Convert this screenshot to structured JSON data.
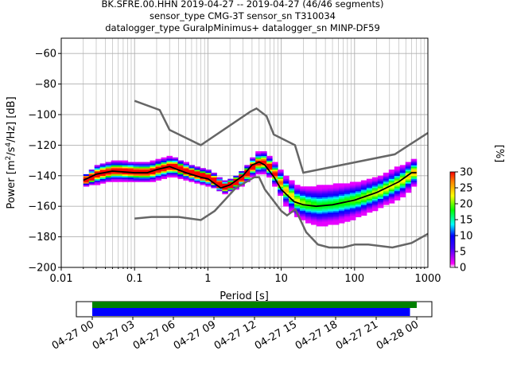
{
  "title_lines": [
    "BK.SFRE.00.HHN   2019-04-27 -- 2019-04-27  (46/46 segments)",
    "sensor_type CMG-3T sensor_sn T310034",
    "datalogger_type GuralpMinimus+ datalogger_sn MINP-DF59"
  ],
  "chart_data": {
    "type": "heatmap",
    "subtype": "ppsd",
    "xlabel": "Period [s]",
    "ylabel": "Power [m²/s⁴/Hz] [dB]",
    "xscale": "log",
    "xlim": [
      0.01,
      1000
    ],
    "ylim": [
      -200,
      -50
    ],
    "xticks": [
      0.01,
      0.1,
      1,
      10,
      100,
      1000
    ],
    "xtick_labels": [
      "0.01",
      "0.1",
      "1",
      "10",
      "100",
      "1000"
    ],
    "yticks": [
      -200,
      -180,
      -160,
      -140,
      -120,
      -100,
      -80,
      -60
    ],
    "ytick_labels": [
      "−200",
      "−180",
      "−160",
      "−140",
      "−120",
      "−100",
      "−80",
      "−60"
    ],
    "grid": true,
    "colorbar": {
      "label": "[%]",
      "range": [
        0,
        30
      ],
      "ticks": [
        "0",
        "5",
        "10",
        "15",
        "20",
        "25",
        "30"
      ]
    },
    "mean_curve": {
      "period": [
        0.02,
        0.03,
        0.05,
        0.1,
        0.15,
        0.2,
        0.3,
        0.5,
        0.8,
        1,
        1.5,
        2,
        3,
        4,
        5,
        6,
        8,
        10,
        15,
        20,
        30,
        50,
        100,
        200,
        400,
        600,
        700
      ],
      "power": [
        -143,
        -139,
        -137,
        -138,
        -138,
        -136,
        -134,
        -138,
        -141,
        -142,
        -148,
        -146,
        -140,
        -133,
        -131,
        -133,
        -141,
        -149,
        -157,
        -159,
        -160,
        -159,
        -156,
        -151,
        -144,
        -138,
        -138
      ],
      "spread_db": [
        3,
        5,
        5,
        5,
        5,
        5,
        5,
        4,
        4,
        4,
        3,
        3,
        4,
        5,
        6,
        5,
        6,
        7,
        8,
        9,
        10,
        10,
        9,
        8,
        8,
        7,
        7
      ]
    },
    "nhnm": {
      "period": [
        0.1,
        0.22,
        0.3,
        0.8,
        3.8,
        4.6,
        6.3,
        7.9,
        15.4,
        20,
        354,
        1000
      ],
      "power": [
        -91,
        -97,
        -110,
        -120,
        -98,
        -96,
        -101,
        -113,
        -120,
        -138,
        -126,
        -112
      ]
    },
    "nlnm": {
      "period": [
        0.1,
        0.17,
        0.4,
        0.8,
        1.24,
        2.4,
        4.3,
        5,
        6,
        10,
        12,
        15.6,
        21.9,
        31.6,
        45,
        70,
        101,
        154,
        328,
        600,
        1000
      ],
      "power": [
        -168,
        -167,
        -167,
        -169,
        -163,
        -148,
        -141,
        -141,
        -149,
        -163,
        -166,
        -162,
        -177,
        -185,
        -187,
        -187,
        -185,
        -185,
        -187,
        -184,
        -178
      ]
    },
    "timeline": {
      "tick_labels": [
        "04-27 00",
        "04-27 03",
        "04-27 06",
        "04-27 09",
        "04-27 12",
        "04-27 15",
        "04-27 18",
        "04-27 21",
        "04-28 00"
      ],
      "available_hours": [
        0,
        24
      ],
      "used_hours": [
        0,
        23.5
      ],
      "available_color": "#008000",
      "used_color": "#0000ff"
    }
  }
}
